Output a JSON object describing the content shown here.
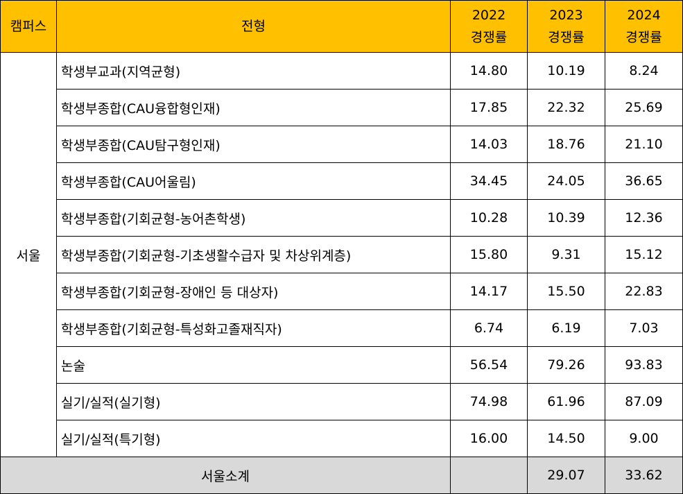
{
  "header": {
    "campus": "캠퍼스",
    "type": "전형",
    "years": [
      {
        "year": "2022",
        "label": "경쟁률"
      },
      {
        "year": "2023",
        "label": "경쟁률"
      },
      {
        "year": "2024",
        "label": "경쟁률"
      }
    ]
  },
  "campus_name": "서울",
  "rows": [
    {
      "type": "학생부교과(지역균형)",
      "v2022": "14.80",
      "v2023": "10.19",
      "v2024": "8.24"
    },
    {
      "type": "학생부종합(CAU융합형인재)",
      "v2022": "17.85",
      "v2023": "22.32",
      "v2024": "25.69"
    },
    {
      "type": "학생부종합(CAU탐구형인재)",
      "v2022": "14.03",
      "v2023": "18.76",
      "v2024": "21.10"
    },
    {
      "type": "학생부종합(CAU어울림)",
      "v2022": "34.45",
      "v2023": "24.05",
      "v2024": "36.65"
    },
    {
      "type": "학생부종합(기회균형-농어촌학생)",
      "v2022": "10.28",
      "v2023": "10.39",
      "v2024": "12.36"
    },
    {
      "type": "학생부종합(기회균형-기초생활수급자 및 차상위계층)",
      "v2022": "15.80",
      "v2023": "9.31",
      "v2024": "15.12"
    },
    {
      "type": "학생부종합(기회균형-장애인 등 대상자)",
      "v2022": "14.17",
      "v2023": "15.50",
      "v2024": "22.83"
    },
    {
      "type": "학생부종합(기회균형-특성화고졸재직자)",
      "v2022": "6.74",
      "v2023": "6.19",
      "v2024": "7.03"
    },
    {
      "type": "논술",
      "v2022": "56.54",
      "v2023": "79.26",
      "v2024": "93.83"
    },
    {
      "type": "실기/실적(실기형)",
      "v2022": "74.98",
      "v2023": "61.96",
      "v2024": "87.09"
    },
    {
      "type": "실기/실적(특기형)",
      "v2022": "16.00",
      "v2023": "14.50",
      "v2024": "9.00"
    }
  ],
  "subtotal": {
    "label": "서울소계",
    "v2022": "",
    "v2023": "29.07",
    "v2024": "33.62"
  }
}
